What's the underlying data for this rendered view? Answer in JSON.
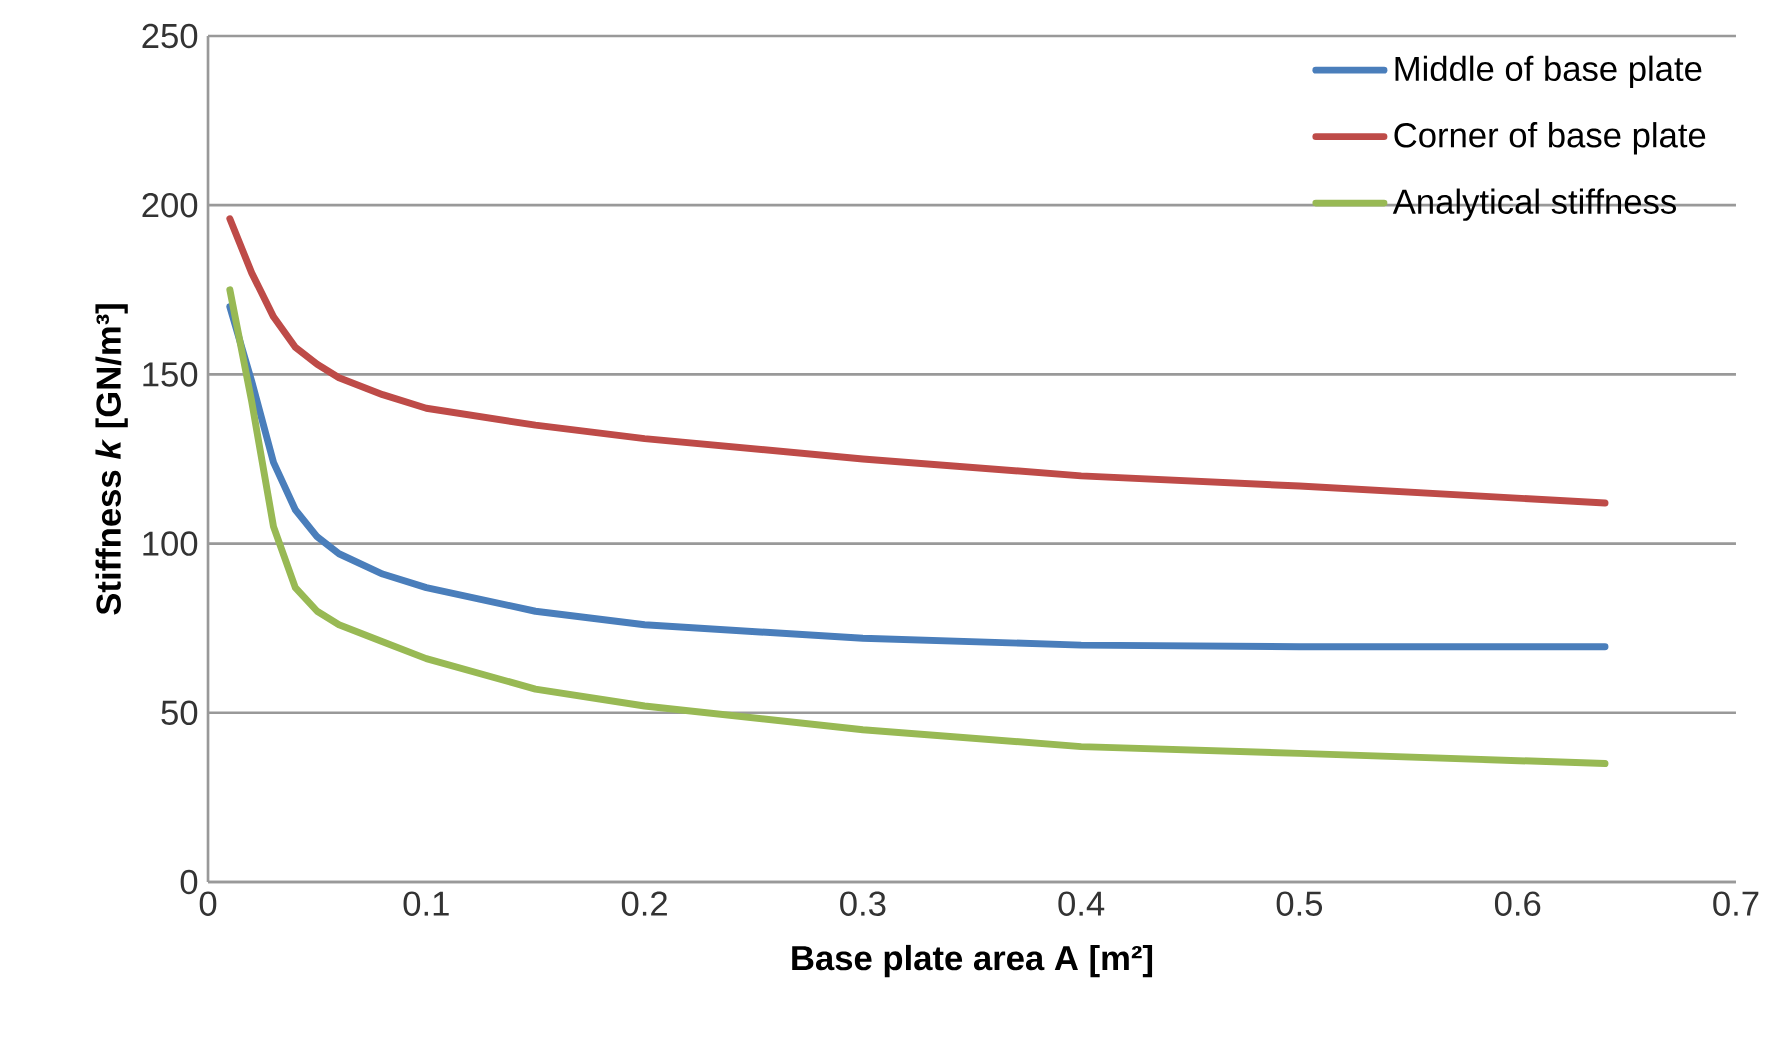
{
  "chart_data": {
    "type": "line",
    "xlabel": "Base plate area A [m²]",
    "ylabel": "Stiffness *k* [GN/m³]",
    "x": [
      0.01,
      0.02,
      0.03,
      0.04,
      0.05,
      0.06,
      0.08,
      0.1,
      0.15,
      0.2,
      0.3,
      0.4,
      0.5,
      0.64
    ],
    "series": [
      {
        "name": "Middle of base plate",
        "color": "#4a7ebb",
        "values": [
          170,
          148,
          124,
          110,
          102,
          97,
          91,
          87,
          80,
          76,
          72,
          70,
          69.5,
          69.5
        ]
      },
      {
        "name": "Corner of base plate",
        "color": "#be4b48",
        "values": [
          196,
          180,
          167,
          158,
          153,
          149,
          144,
          140,
          135,
          131,
          125,
          120,
          117,
          112
        ]
      },
      {
        "name": "Analytical stiffness",
        "color": "#98b954",
        "values": [
          175,
          142,
          105,
          87,
          80,
          76,
          71,
          66,
          57,
          52,
          45,
          40,
          38,
          35
        ]
      }
    ],
    "xlim": [
      0,
      0.7
    ],
    "xticks": [
      0,
      0.1,
      0.2,
      0.3,
      0.4,
      0.5,
      0.6,
      0.7
    ],
    "ylim": [
      0,
      250
    ],
    "yticks": [
      0,
      50,
      100,
      150,
      200,
      250
    ],
    "grid": "y",
    "legend": "top right",
    "marker": "none",
    "line_style": "solid"
  }
}
